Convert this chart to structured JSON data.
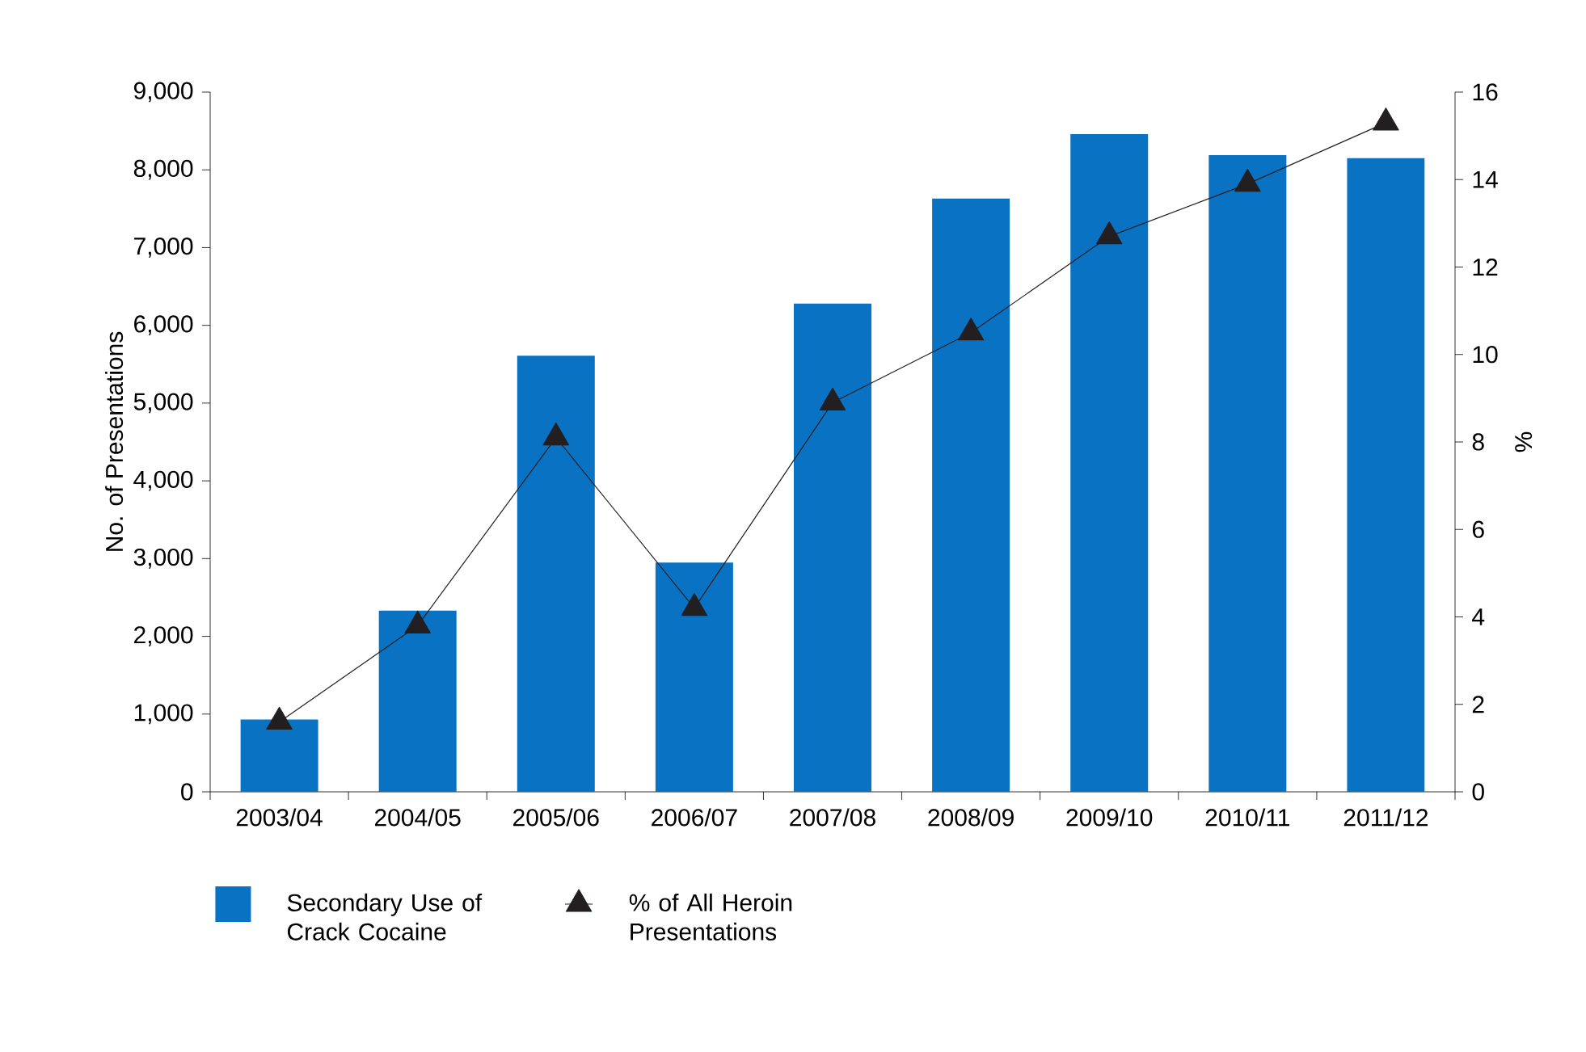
{
  "chart_data": {
    "type": "bar",
    "categories": [
      "2003/04",
      "2004/05",
      "2005/06",
      "2006/07",
      "2007/08",
      "2008/09",
      "2009/10",
      "2010/11",
      "2011/12"
    ],
    "series": [
      {
        "name": "Secondary Use of Crack Cocaine",
        "color": "#0a72c2",
        "values": [
          930,
          2330,
          5610,
          2950,
          6280,
          7630,
          8460,
          8190,
          8150
        ]
      },
      {
        "name": "% of All Heroin Presentations",
        "type": "line",
        "axis": "y2",
        "color": "#231f20",
        "values": [
          1.6,
          3.8,
          8.1,
          4.2,
          8.9,
          10.5,
          12.7,
          13.9,
          15.3
        ]
      }
    ],
    "ylabel": "No. of Presentations",
    "y2label": "%",
    "ylim": [
      0,
      9000
    ],
    "yticks": [
      0,
      {
        "value": 1000,
        "label": "1,000"
      },
      {
        "value": 2000,
        "label": "2,000"
      },
      {
        "value": 3000,
        "label": "3,000"
      },
      {
        "value": 4000,
        "label": "4,000"
      },
      {
        "value": 5000,
        "label": "5,000"
      },
      {
        "value": 6000,
        "label": "6,000"
      },
      {
        "value": 7000,
        "label": "7,000"
      },
      {
        "value": 8000,
        "label": "8,000"
      },
      {
        "value": 9000,
        "label": "9,000"
      }
    ],
    "y2lim": [
      0,
      16
    ],
    "y2ticks": [
      0,
      2,
      4,
      6,
      8,
      10,
      12,
      14,
      16
    ],
    "marker": "triangle",
    "legend": "bottom left",
    "grid": false
  }
}
